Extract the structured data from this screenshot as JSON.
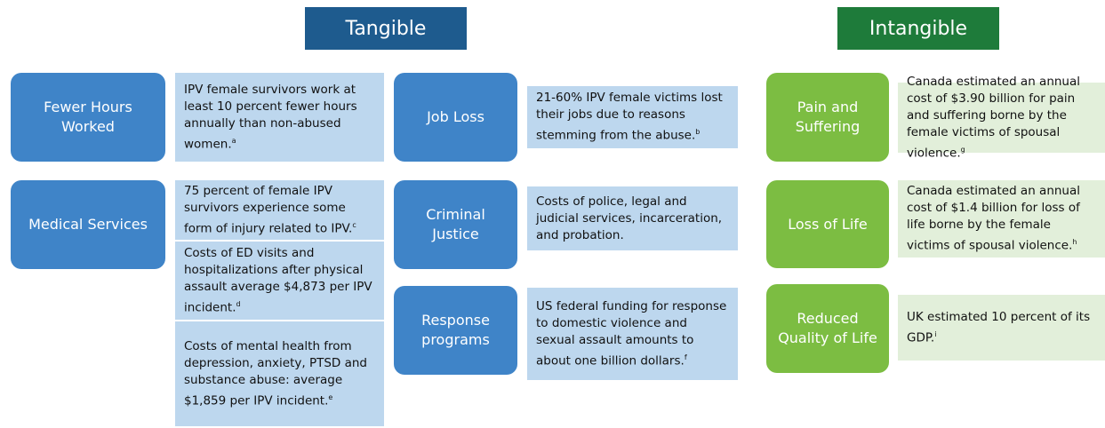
{
  "headers": {
    "tangible": "Tangible",
    "intangible": "Intangible"
  },
  "tangible": [
    {
      "label": "Fewer Hours Worked",
      "details": [
        {
          "text": "IPV female survivors work at least 10 percent fewer hours annually than non-abused women.",
          "note": "a"
        }
      ]
    },
    {
      "label": "Medical Services",
      "details": [
        {
          "text": "75 percent of female IPV survivors experience some form of injury related to IPV.",
          "note": "c"
        },
        {
          "text": "Costs of ED visits and hospitalizations after physical assault  average $4,873 per IPV incident.",
          "note": "d"
        },
        {
          "text": "Costs of mental health from depression, anxiety, PTSD and substance abuse: average $1,859 per IPV incident.",
          "note": "e"
        }
      ]
    },
    {
      "label": "Job Loss",
      "details": [
        {
          "text": "21-60% IPV female victims lost their jobs due to reasons stemming from the abuse.",
          "note": "b"
        }
      ]
    },
    {
      "label": "Criminal Justice",
      "details": [
        {
          "text": "Costs of police, legal and judicial services, incarceration, and probation."
        }
      ]
    },
    {
      "label": "Response programs",
      "details": [
        {
          "text": "US federal funding for response to domestic violence and sexual assault amounts to about one billion dollars.",
          "note": "f"
        }
      ]
    }
  ],
  "intangible": [
    {
      "label": "Pain and Suffering",
      "details": [
        {
          "text": "Canada estimated an annual cost of $3.90 billion for pain and suffering borne by the female victims of spousal violence.",
          "note": "g"
        }
      ]
    },
    {
      "label": "Loss of Life",
      "details": [
        {
          "text": "Canada estimated an annual cost of  $1.4 billion for loss of life borne by the female victims of spousal violence.",
          "note": "h"
        }
      ]
    },
    {
      "label": "Reduced Quality of Life",
      "details": [
        {
          "text": "UK estimated 10 percent of its GDP.",
          "note": "i"
        }
      ]
    }
  ]
}
